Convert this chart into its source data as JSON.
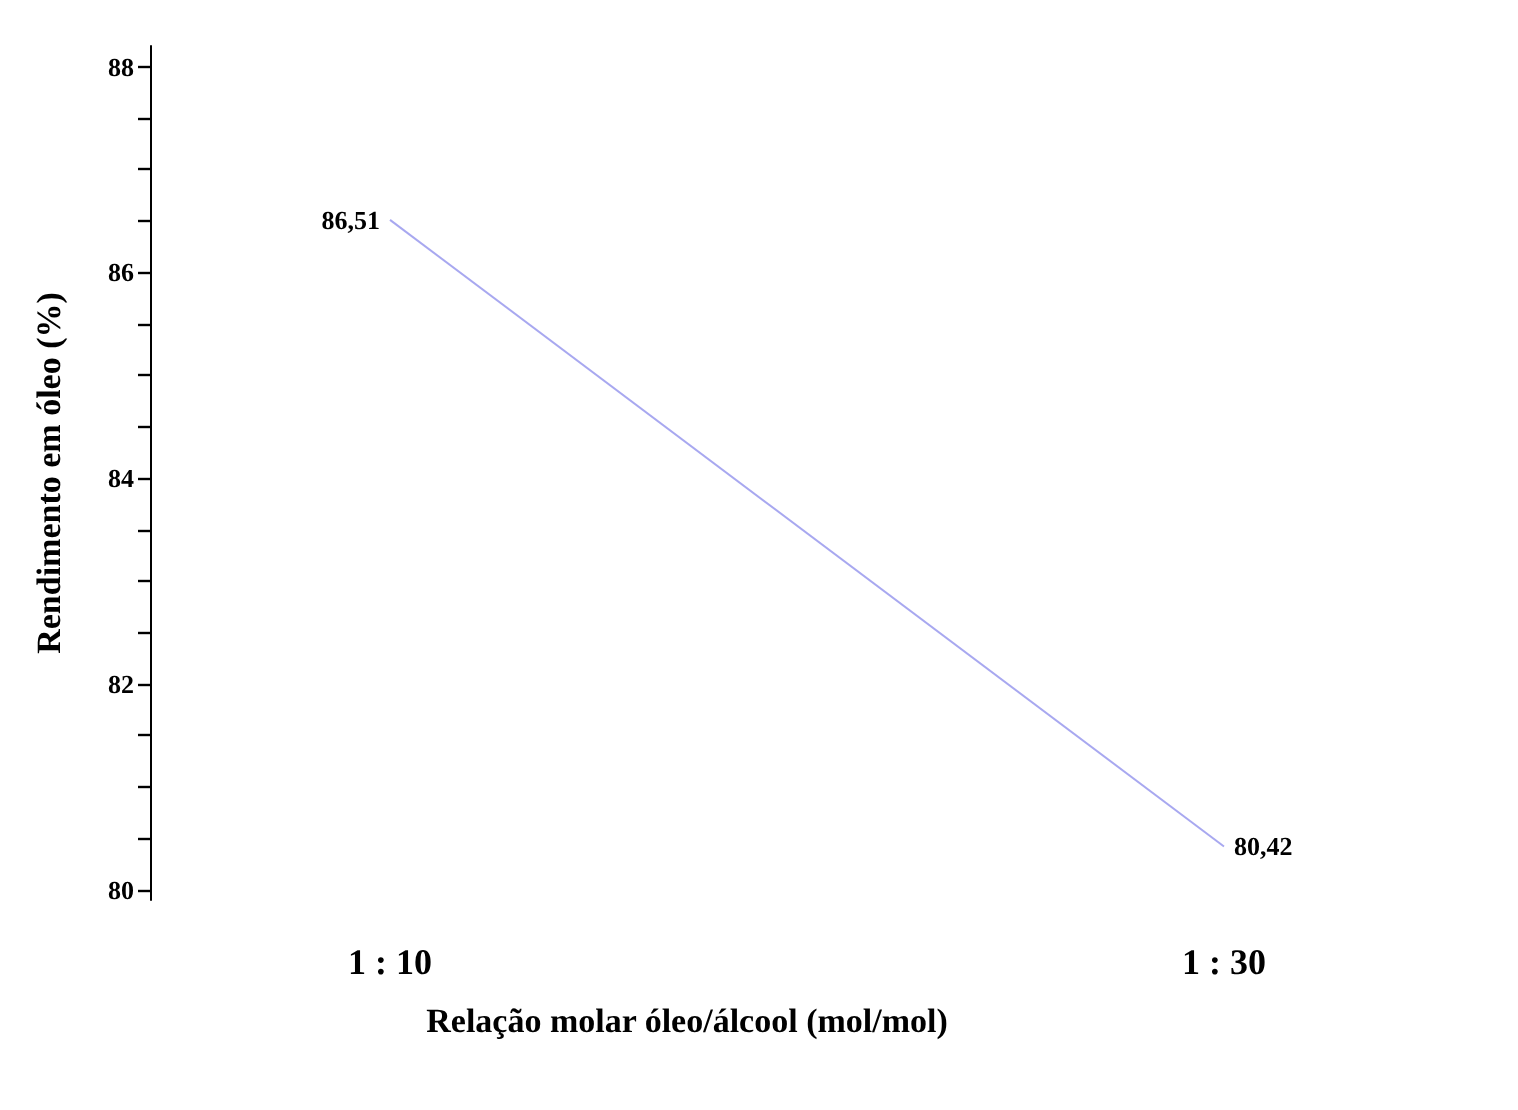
{
  "chart_data": {
    "type": "line",
    "xlabel": "Relação molar óleo/álcool (mol/mol)",
    "ylabel": "Rendimento em óleo (%)",
    "categories": [
      "1 : 10",
      "1 : 30"
    ],
    "series": [
      {
        "color": "#a8a8f0",
        "values": [
          86.51,
          80.42
        ],
        "value_labels": [
          "86,51",
          "80,42"
        ]
      }
    ],
    "ylim": [
      79.9,
      88.2
    ],
    "yticks": [
      80,
      82,
      84,
      86,
      88
    ],
    "grid": false,
    "marker": "none",
    "line_style": "solid"
  }
}
